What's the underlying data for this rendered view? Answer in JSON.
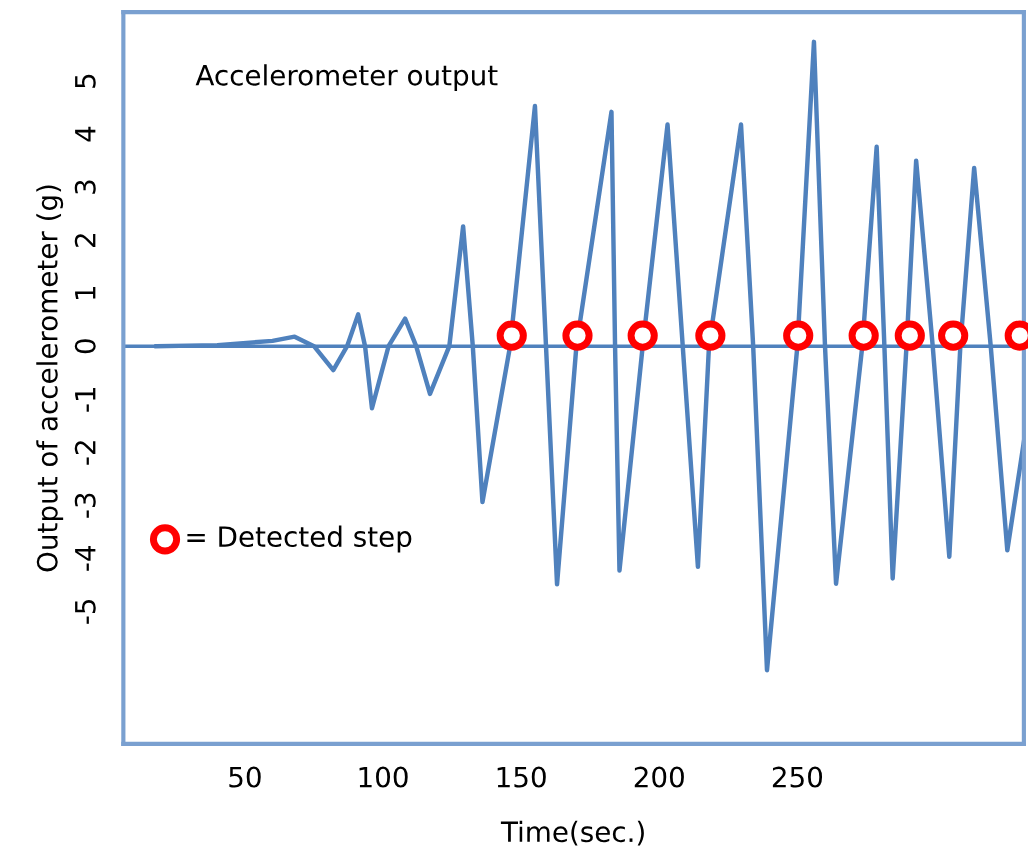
{
  "chart_data": {
    "type": "line",
    "xlabel": "Time(sec.)",
    "ylabel": "Output of accelerometer (g)",
    "annotations": [
      "Accelerometer output"
    ],
    "xlim": [
      6,
      332
    ],
    "xticks": [
      50,
      100,
      150,
      200,
      250
    ],
    "ylim": [
      -7.5,
      6.3
    ],
    "yticks": [
      -5,
      -4,
      -3,
      -2,
      -1,
      0,
      1,
      2,
      3,
      4,
      5
    ],
    "grid": false,
    "legend": "left",
    "tick_labels": "xy",
    "ref_lines": [
      {
        "axis": "y",
        "value": 0,
        "color": "#4f81bd"
      }
    ],
    "series": [
      {
        "color": "#4f81bd",
        "marker": "none",
        "line_style": "solid",
        "x": [
          18,
          40,
          60,
          68,
          75,
          82,
          87,
          91,
          93.5,
          96,
          102,
          108,
          112,
          117,
          124,
          129,
          132.5,
          136,
          146,
          155,
          159,
          163,
          170,
          182.7,
          184,
          185.6,
          194,
          203,
          208.5,
          214,
          218,
          229.6,
          234,
          239,
          250,
          256,
          260,
          264,
          273.5,
          278.7,
          281.5,
          284.5,
          289.5,
          293,
          299,
          305,
          309,
          314,
          320,
          326,
          332
        ],
        "values": [
          0,
          0.02,
          0.1,
          0.18,
          0,
          -0.45,
          0,
          0.6,
          0,
          -1.17,
          0,
          0.52,
          0,
          -0.9,
          0,
          2.26,
          0,
          -2.94,
          0,
          4.53,
          0,
          -4.49,
          0,
          4.42,
          0,
          -4.23,
          0,
          4.18,
          0,
          -4.16,
          0,
          4.18,
          0,
          -6.11,
          0,
          5.74,
          0,
          -4.48,
          0,
          3.76,
          0,
          -4.38,
          0,
          3.5,
          0,
          -3.97,
          0,
          3.36,
          0,
          -3.85,
          -1.8
        ]
      },
      {
        "type": "scatter",
        "name": "= Detected step",
        "color": "#ff0000",
        "marker": "circle",
        "x": [
          146.6,
          170.4,
          194,
          218.5,
          250.3,
          274,
          290.7,
          306.4,
          330.5
        ],
        "values": [
          0.2,
          0.2,
          0.2,
          0.2,
          0.2,
          0.2,
          0.2,
          0.2,
          0.2
        ]
      }
    ]
  }
}
